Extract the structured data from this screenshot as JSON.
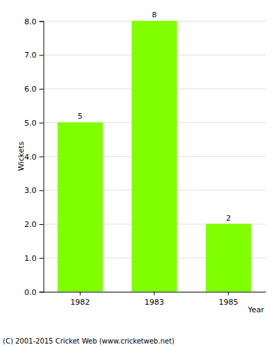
{
  "chart_data": {
    "type": "bar",
    "x_label": "Year",
    "y_label": "Wickets",
    "categories": [
      "1982",
      "1983",
      "1985"
    ],
    "values": [
      5,
      8,
      2
    ],
    "color": "#80ff00",
    "ylim": [
      0,
      8
    ],
    "yticks": [
      {
        "value": 0,
        "label": "0.0"
      },
      {
        "value": 1,
        "label": "1.0"
      },
      {
        "value": 2,
        "label": "2.0"
      },
      {
        "value": 3,
        "label": "3.0"
      },
      {
        "value": 4,
        "label": "4.0"
      },
      {
        "value": 5,
        "label": "5.0"
      },
      {
        "value": 6,
        "label": "6.0"
      },
      {
        "value": 7,
        "label": "7.0"
      },
      {
        "value": 8,
        "label": "8.0"
      }
    ],
    "grid": true,
    "data_labels": true,
    "annotations": [
      "(C) 2001-2015 Cricket Web (www.cricketweb.net)"
    ]
  }
}
